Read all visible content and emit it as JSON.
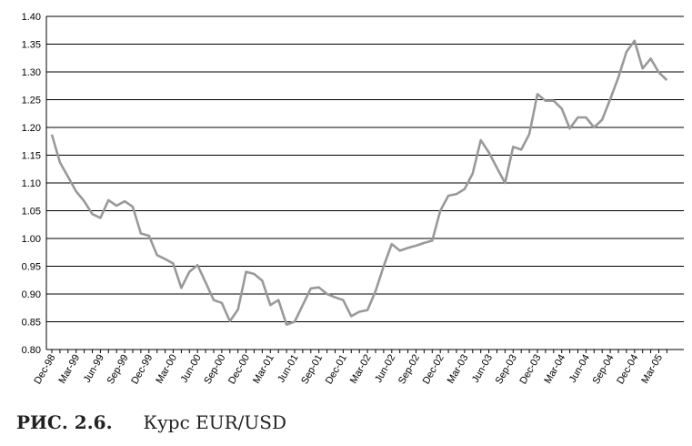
{
  "caption": {
    "figure": "РИС. 2.6.",
    "title": "Курс EUR/USD"
  },
  "chart_data": {
    "type": "line",
    "title": "",
    "xlabel": "",
    "ylabel": "",
    "ylim": [
      0.8,
      1.4
    ],
    "yticks": [
      "0.80",
      "0.85",
      "0.90",
      "0.95",
      "1.00",
      "1.05",
      "1.10",
      "1.15",
      "1.20",
      "1.25",
      "1.30",
      "1.35",
      "1.40"
    ],
    "xtick_labels": [
      "Dec-98",
      "Mar-99",
      "Jun-99",
      "Sep-99",
      "Dec-99",
      "Mar-00",
      "Jun-00",
      "Sep-00",
      "Dec-00",
      "Mar-01",
      "Jun-01",
      "Sep-01",
      "Dec-01",
      "Mar-02",
      "Jun-02",
      "Sep-02",
      "Dec-02",
      "Mar-03",
      "Jun-03",
      "Sep-03",
      "Dec-03",
      "Mar-04",
      "Jun-04",
      "Sep-04",
      "Dec-04",
      "Mar-05"
    ],
    "grid": true,
    "line_color": "#999999",
    "series": [
      {
        "values": [
          1.187,
          1.137,
          1.111,
          1.085,
          1.067,
          1.044,
          1.037,
          1.069,
          1.059,
          1.067,
          1.057,
          1.009,
          1.005,
          0.97,
          0.963,
          0.955,
          0.911,
          0.94,
          0.952,
          0.921,
          0.889,
          0.884,
          0.851,
          0.872,
          0.94,
          0.936,
          0.924,
          0.88,
          0.889,
          0.845,
          0.85,
          0.88,
          0.91,
          0.912,
          0.9,
          0.894,
          0.889,
          0.86,
          0.868,
          0.871,
          0.905,
          0.95,
          0.99,
          0.978,
          0.983,
          0.987,
          0.992,
          0.996,
          1.05,
          1.077,
          1.08,
          1.089,
          1.117,
          1.177,
          1.155,
          1.127,
          1.1,
          1.165,
          1.16,
          1.188,
          1.26,
          1.248,
          1.248,
          1.234,
          1.198,
          1.218,
          1.218,
          1.2,
          1.214,
          1.251,
          1.29,
          1.336,
          1.356,
          1.306,
          1.324,
          1.299,
          1.285
        ]
      }
    ]
  }
}
